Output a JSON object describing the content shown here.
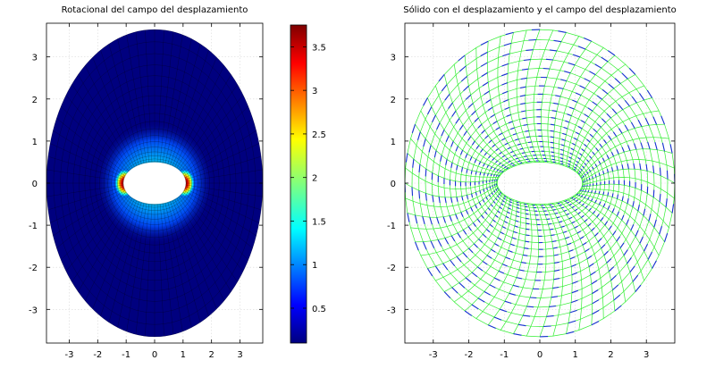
{
  "chart_data": [
    {
      "type": "heatmap",
      "title": "Rotacional del campo del desplazamiento",
      "xlabel": "",
      "ylabel": "",
      "xlim": [
        -3.8,
        3.8
      ],
      "ylim": [
        -3.8,
        3.8
      ],
      "xticks": [
        -3,
        -2,
        -1,
        0,
        1,
        2,
        3
      ],
      "yticks": [
        -3,
        -2,
        -1,
        0,
        1,
        2,
        3
      ],
      "grid": true,
      "domain": {
        "outer_ellipse": {
          "a": 3.8,
          "b": 3.65
        },
        "inner_ellipse": {
          "a": 1.1,
          "b": 0.5
        }
      },
      "colorbar": {
        "range": [
          0.1,
          3.75
        ],
        "ticks": [
          0.5,
          1,
          1.5,
          2,
          2.5,
          3,
          3.5
        ],
        "tick_labels": [
          "0.5",
          "1",
          "1.5",
          "2",
          "2.5",
          "3",
          "3.5"
        ],
        "colormap": "jet",
        "colors": [
          "#00007f",
          "#0000ff",
          "#007fff",
          "#00ffff",
          "#7fff7f",
          "#ffff00",
          "#ff7f00",
          "#ff0000",
          "#7f0000"
        ]
      }
    },
    {
      "type": "vector-field",
      "title": "Sólido con el desplazamiento y el campo del desplazamiento",
      "xlabel": "",
      "ylabel": "",
      "xlim": [
        -3.8,
        3.8
      ],
      "ylim": [
        -3.8,
        3.8
      ],
      "xticks": [
        -3,
        -2,
        -1,
        0,
        1,
        2,
        3
      ],
      "yticks": [
        -3,
        -2,
        -1,
        0,
        1,
        2,
        3
      ],
      "grid": true,
      "domain": {
        "outer_ellipse": {
          "a": 3.8,
          "b": 3.65
        },
        "inner_ellipse": {
          "a": 1.2,
          "b": 0.5
        }
      },
      "mesh_color": "#33ee33",
      "arrow_color": "#1a2fd6"
    }
  ]
}
